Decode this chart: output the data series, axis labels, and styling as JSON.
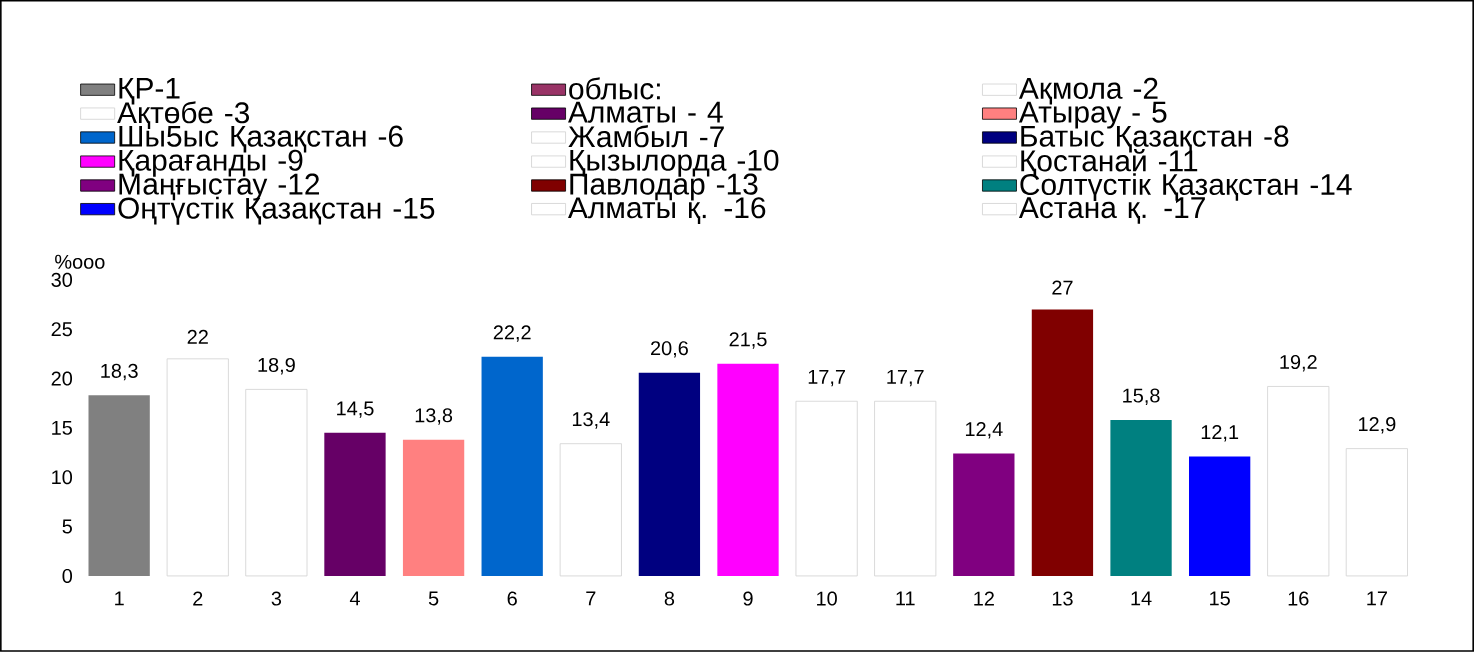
{
  "chart_data": {
    "type": "bar",
    "ylabel": "%ooo",
    "categories": [
      "1",
      "2",
      "3",
      "4",
      "5",
      "6",
      "7",
      "8",
      "9",
      "10",
      "11",
      "12",
      "13",
      "14",
      "15",
      "16",
      "17"
    ],
    "ylim": [
      0,
      30
    ],
    "yticks": [
      0,
      5,
      10,
      15,
      20,
      25,
      30
    ],
    "legend": "top",
    "series": [
      {
        "name": "ҚР-1",
        "color": "#808080",
        "values": [
          18.3,
          null,
          null,
          null,
          null,
          null,
          null,
          null,
          null,
          null,
          null,
          null,
          null,
          null,
          null,
          null,
          null
        ],
        "value_labels": [
          "18,3",
          null,
          null,
          null,
          null,
          null,
          null,
          null,
          null,
          null,
          null,
          null,
          null,
          null,
          null,
          null,
          null
        ]
      },
      {
        "name": "облыс:",
        "color": "#993366",
        "values": [
          null,
          null,
          null,
          null,
          null,
          null,
          null,
          null,
          null,
          null,
          null,
          null,
          null,
          null,
          null,
          null,
          null
        ]
      },
      {
        "name": "Ақмола -2",
        "color": "#ffffff",
        "values": [
          null,
          22,
          null,
          null,
          null,
          null,
          null,
          null,
          null,
          null,
          null,
          null,
          null,
          null,
          null,
          null,
          null
        ],
        "value_labels": [
          null,
          "22",
          null,
          null,
          null,
          null,
          null,
          null,
          null,
          null,
          null,
          null,
          null,
          null,
          null,
          null,
          null
        ]
      },
      {
        "name": "Ақтөбе -3",
        "color": "#ffffff",
        "values": [
          null,
          null,
          18.9,
          null,
          null,
          null,
          null,
          null,
          null,
          null,
          null,
          null,
          null,
          null,
          null,
          null,
          null
        ],
        "value_labels": [
          null,
          null,
          "18,9",
          null,
          null,
          null,
          null,
          null,
          null,
          null,
          null,
          null,
          null,
          null,
          null,
          null,
          null
        ]
      },
      {
        "name": "Алматы - 4",
        "color": "#660066",
        "values": [
          null,
          null,
          null,
          14.5,
          null,
          null,
          null,
          null,
          null,
          null,
          null,
          null,
          null,
          null,
          null,
          null,
          null
        ],
        "value_labels": [
          null,
          null,
          null,
          "14,5",
          null,
          null,
          null,
          null,
          null,
          null,
          null,
          null,
          null,
          null,
          null,
          null,
          null
        ]
      },
      {
        "name": "Атырау - 5",
        "color": "#ff8080",
        "values": [
          null,
          null,
          null,
          null,
          13.8,
          null,
          null,
          null,
          null,
          null,
          null,
          null,
          null,
          null,
          null,
          null,
          null
        ],
        "value_labels": [
          null,
          null,
          null,
          null,
          "13,8",
          null,
          null,
          null,
          null,
          null,
          null,
          null,
          null,
          null,
          null,
          null,
          null
        ]
      },
      {
        "name": "Шы5ыс Қазақстан -6",
        "color": "#0066cc",
        "values": [
          null,
          null,
          null,
          null,
          null,
          22.2,
          null,
          null,
          null,
          null,
          null,
          null,
          null,
          null,
          null,
          null,
          null
        ],
        "value_labels": [
          null,
          null,
          null,
          null,
          null,
          "22,2",
          null,
          null,
          null,
          null,
          null,
          null,
          null,
          null,
          null,
          null,
          null
        ]
      },
      {
        "name": "Жамбыл -7",
        "color": "#ffffff",
        "values": [
          null,
          null,
          null,
          null,
          null,
          null,
          13.4,
          null,
          null,
          null,
          null,
          null,
          null,
          null,
          null,
          null,
          null
        ],
        "value_labels": [
          null,
          null,
          null,
          null,
          null,
          null,
          "13,4",
          null,
          null,
          null,
          null,
          null,
          null,
          null,
          null,
          null,
          null
        ]
      },
      {
        "name": "Батыс Қазақстан -8",
        "color": "#000080",
        "values": [
          null,
          null,
          null,
          null,
          null,
          null,
          null,
          20.6,
          null,
          null,
          null,
          null,
          null,
          null,
          null,
          null,
          null
        ],
        "value_labels": [
          null,
          null,
          null,
          null,
          null,
          null,
          null,
          "20,6",
          null,
          null,
          null,
          null,
          null,
          null,
          null,
          null,
          null
        ]
      },
      {
        "name": "Қарағанды -9",
        "color": "#ff00ff",
        "values": [
          null,
          null,
          null,
          null,
          null,
          null,
          null,
          null,
          21.5,
          null,
          null,
          null,
          null,
          null,
          null,
          null,
          null
        ],
        "value_labels": [
          null,
          null,
          null,
          null,
          null,
          null,
          null,
          null,
          "21,5",
          null,
          null,
          null,
          null,
          null,
          null,
          null,
          null
        ]
      },
      {
        "name": "Қызылорда -10",
        "color": "#ffffff",
        "values": [
          null,
          null,
          null,
          null,
          null,
          null,
          null,
          null,
          null,
          17.7,
          null,
          null,
          null,
          null,
          null,
          null,
          null
        ],
        "value_labels": [
          null,
          null,
          null,
          null,
          null,
          null,
          null,
          null,
          null,
          "17,7",
          null,
          null,
          null,
          null,
          null,
          null,
          null
        ]
      },
      {
        "name": "Қостанай -11",
        "color": "#ffffff",
        "values": [
          null,
          null,
          null,
          null,
          null,
          null,
          null,
          null,
          null,
          null,
          17.7,
          null,
          null,
          null,
          null,
          null,
          null
        ],
        "value_labels": [
          null,
          null,
          null,
          null,
          null,
          null,
          null,
          null,
          null,
          null,
          "17,7",
          null,
          null,
          null,
          null,
          null,
          null
        ]
      },
      {
        "name": "Маңғыстау -12",
        "color": "#800080",
        "values": [
          null,
          null,
          null,
          null,
          null,
          null,
          null,
          null,
          null,
          null,
          null,
          12.4,
          null,
          null,
          null,
          null,
          null
        ],
        "value_labels": [
          null,
          null,
          null,
          null,
          null,
          null,
          null,
          null,
          null,
          null,
          null,
          "12,4",
          null,
          null,
          null,
          null,
          null
        ]
      },
      {
        "name": "Павлодар -13",
        "color": "#800000",
        "values": [
          null,
          null,
          null,
          null,
          null,
          null,
          null,
          null,
          null,
          null,
          null,
          null,
          27,
          null,
          null,
          null,
          null
        ],
        "value_labels": [
          null,
          null,
          null,
          null,
          null,
          null,
          null,
          null,
          null,
          null,
          null,
          null,
          "27",
          null,
          null,
          null,
          null
        ]
      },
      {
        "name": "Солтүстік Қазақстан -14",
        "color": "#008080",
        "values": [
          null,
          null,
          null,
          null,
          null,
          null,
          null,
          null,
          null,
          null,
          null,
          null,
          null,
          15.8,
          null,
          null,
          null
        ],
        "value_labels": [
          null,
          null,
          null,
          null,
          null,
          null,
          null,
          null,
          null,
          null,
          null,
          null,
          null,
          "15,8",
          null,
          null,
          null
        ]
      },
      {
        "name": "Оңтүстік Қазақстан -15",
        "color": "#0000ff",
        "values": [
          null,
          null,
          null,
          null,
          null,
          null,
          null,
          null,
          null,
          null,
          null,
          null,
          null,
          null,
          12.1,
          null,
          null
        ],
        "value_labels": [
          null,
          null,
          null,
          null,
          null,
          null,
          null,
          null,
          null,
          null,
          null,
          null,
          null,
          null,
          "12,1",
          null,
          null
        ]
      },
      {
        "name": "Алматы қ. -16",
        "color": "#ffffff",
        "values": [
          null,
          null,
          null,
          null,
          null,
          null,
          null,
          null,
          null,
          null,
          null,
          null,
          null,
          null,
          null,
          19.2,
          null
        ],
        "value_labels": [
          null,
          null,
          null,
          null,
          null,
          null,
          null,
          null,
          null,
          null,
          null,
          null,
          null,
          null,
          null,
          "19,2",
          null
        ]
      },
      {
        "name": "Астана қ. -17",
        "color": "#ffffff",
        "values": [
          null,
          null,
          null,
          null,
          null,
          null,
          null,
          null,
          null,
          null,
          null,
          null,
          null,
          null,
          null,
          null,
          12.9
        ],
        "value_labels": [
          null,
          null,
          null,
          null,
          null,
          null,
          null,
          null,
          null,
          null,
          null,
          null,
          null,
          null,
          null,
          null,
          "12,9"
        ]
      }
    ]
  }
}
